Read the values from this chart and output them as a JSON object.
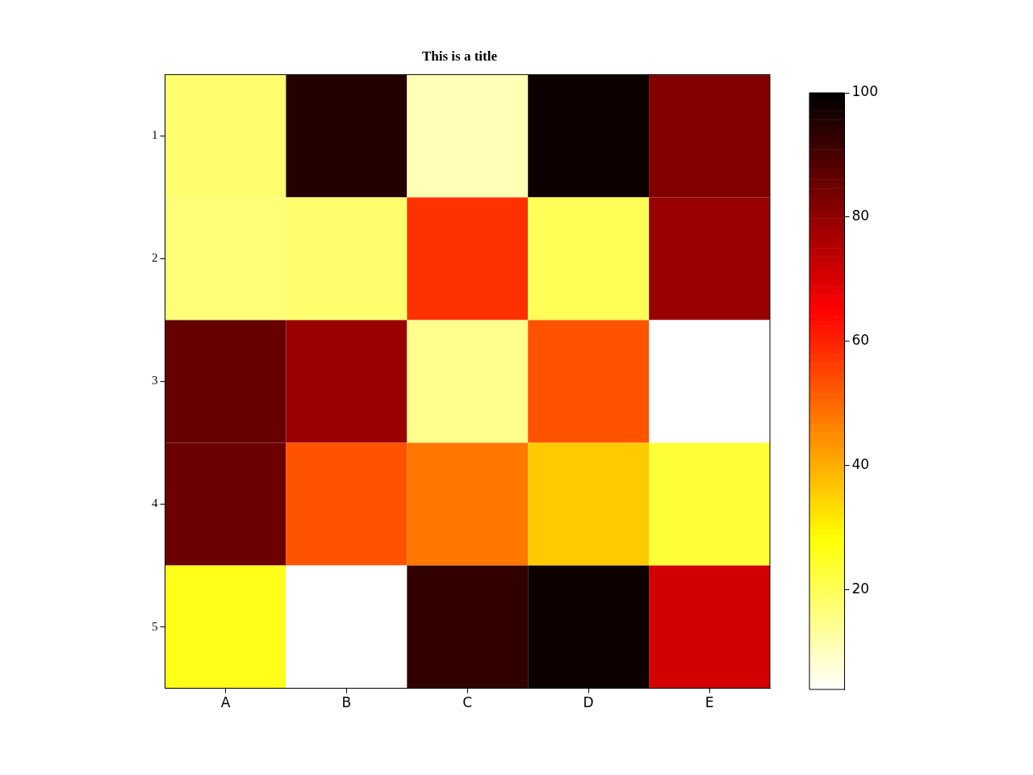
{
  "chart_data": {
    "type": "heatmap",
    "title": "This is a title",
    "categories": [
      "A",
      "B",
      "C",
      "D",
      "E"
    ],
    "y_categories": [
      "1",
      "2",
      "3",
      "4",
      "5"
    ],
    "cells": [
      [
        18,
        95,
        11,
        98,
        82
      ],
      [
        17,
        18,
        58,
        20,
        79
      ],
      [
        86,
        79,
        15,
        53,
        4
      ],
      [
        85,
        53,
        48,
        36,
        23
      ],
      [
        26,
        4,
        93,
        98,
        71
      ]
    ],
    "clim": [
      4,
      100
    ],
    "cticks": [
      20,
      40,
      60,
      80,
      100
    ]
  }
}
